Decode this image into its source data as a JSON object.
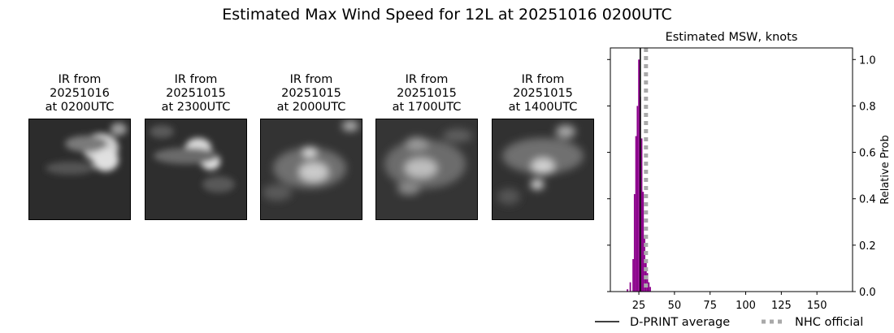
{
  "suptitle": "Estimated Max Wind Speed for 12L at 20251016 0200UTC",
  "ir_panels": [
    {
      "line1": "IR from",
      "line2": "20251016",
      "line3": "at 0200UTC"
    },
    {
      "line1": "IR from",
      "line2": "20251015",
      "line3": "at 2300UTC"
    },
    {
      "line1": "IR from",
      "line2": "20251015",
      "line3": "at 2000UTC"
    },
    {
      "line1": "IR from",
      "line2": "20251015",
      "line3": "at 1700UTC"
    },
    {
      "line1": "IR from",
      "line2": "20251015",
      "line3": "at 1400UTC"
    }
  ],
  "chart_data": {
    "type": "bar",
    "title": "Estimated MSW, knots",
    "xlabel": "",
    "ylabel": "Relative Prob",
    "xlim": [
      5,
      175
    ],
    "ylim": [
      0,
      1.05
    ],
    "xticks": [
      25,
      50,
      75,
      100,
      125,
      150
    ],
    "yticks": [
      "0.0",
      "0.2",
      "0.4",
      "0.6",
      "0.8",
      "1.0"
    ],
    "bar_color": "#8b008b",
    "bins": [
      {
        "x": 17,
        "y": 0.01
      },
      {
        "x": 19,
        "y": 0.04
      },
      {
        "x": 21,
        "y": 0.14
      },
      {
        "x": 22,
        "y": 0.42
      },
      {
        "x": 23,
        "y": 0.67
      },
      {
        "x": 24,
        "y": 0.8
      },
      {
        "x": 25,
        "y": 1.0
      },
      {
        "x": 26,
        "y": 0.84
      },
      {
        "x": 27,
        "y": 0.66
      },
      {
        "x": 28,
        "y": 0.43
      },
      {
        "x": 29,
        "y": 0.23
      },
      {
        "x": 30,
        "y": 0.13
      },
      {
        "x": 31,
        "y": 0.08
      },
      {
        "x": 32,
        "y": 0.04
      },
      {
        "x": 33,
        "y": 0.02
      }
    ],
    "dprint_average": 26,
    "nhc_official": 30,
    "legend": [
      {
        "label": "D-PRINT average",
        "color": "#000000",
        "style": "solid"
      },
      {
        "label": "NHC official",
        "color": "#a9a9a9",
        "style": "dotted"
      }
    ],
    "legend_placement": "bottom"
  }
}
